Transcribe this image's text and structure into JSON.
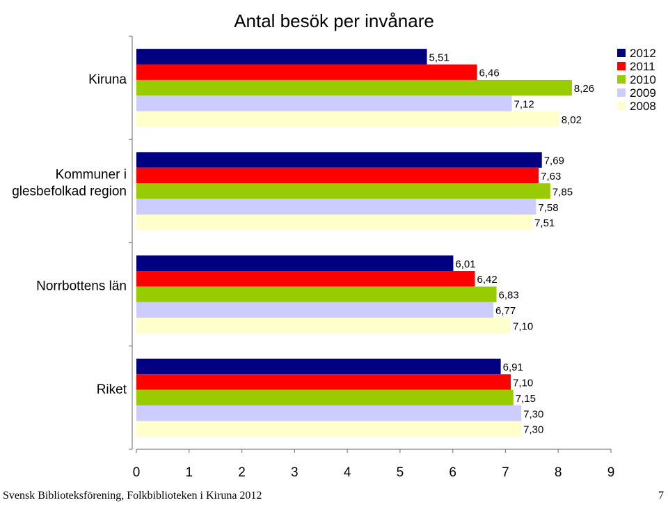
{
  "chart_data": {
    "type": "bar",
    "orientation": "horizontal",
    "title": "Antal besök per invånare",
    "categories": [
      "Kiruna",
      "Kommuner i glesbefolkad region",
      "Norrbottens län",
      "Riket"
    ],
    "category_label_lines": [
      [
        "Kiruna"
      ],
      [
        "Kommuner i",
        "glesbefolkad region"
      ],
      [
        "Norrbottens län"
      ],
      [
        "Riket"
      ]
    ],
    "series": [
      {
        "name": "2012",
        "color": "#000080",
        "values": [
          5.51,
          7.69,
          6.01,
          6.91
        ],
        "labels": [
          "5,51",
          "7,69",
          "6,01",
          "6,91"
        ]
      },
      {
        "name": "2011",
        "color": "#ff0000",
        "values": [
          6.46,
          7.63,
          6.42,
          7.1
        ],
        "labels": [
          "6,46",
          "7,63",
          "6,42",
          "7,10"
        ]
      },
      {
        "name": "2010",
        "color": "#99cc00",
        "values": [
          8.26,
          7.85,
          6.83,
          7.15
        ],
        "labels": [
          "8,26",
          "7,85",
          "6,83",
          "7,15"
        ]
      },
      {
        "name": "2009",
        "color": "#ccccff",
        "values": [
          7.12,
          7.58,
          6.77,
          7.3
        ],
        "labels": [
          "7,12",
          "7,58",
          "6,77",
          "7,30"
        ]
      },
      {
        "name": "2008",
        "color": "#ffffcc",
        "values": [
          8.02,
          7.51,
          7.1,
          7.3
        ],
        "labels": [
          "8,02",
          "7,51",
          "7,10",
          "7,30"
        ]
      }
    ],
    "xlim": [
      0,
      9
    ],
    "xticks": [
      "0",
      "1",
      "2",
      "3",
      "4",
      "5",
      "6",
      "7",
      "8",
      "9"
    ],
    "grid": false,
    "legend_position": "top-right"
  },
  "footer": {
    "left": "Svensk Biblioteksförening, Folkbiblioteken i Kiruna 2012",
    "page_number": "7"
  }
}
